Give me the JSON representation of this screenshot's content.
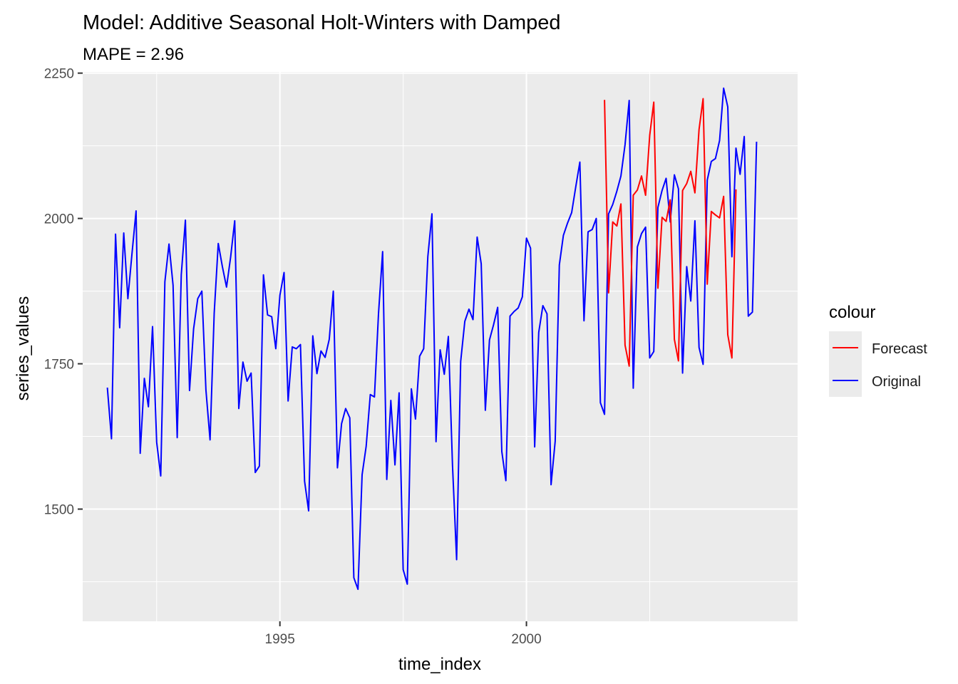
{
  "chart_data": {
    "type": "line",
    "title": "Model:  Additive Seasonal Holt-Winters with Damped",
    "subtitle": "MAPE = 2.96",
    "xlabel": "time_index",
    "ylabel": "series_values",
    "xlim": [
      1991.0,
      2005.5
    ],
    "ylim": [
      1307,
      2252
    ],
    "x_ticks": [
      1995,
      2000
    ],
    "x_ticklabels": [
      "1995",
      "2000"
    ],
    "y_ticks": [
      1500,
      1750,
      2000,
      2250
    ],
    "y_ticklabels": [
      "1500",
      "1750",
      "2000",
      "2250"
    ],
    "grid": true,
    "legend": {
      "title": "colour",
      "position": "right",
      "entries": [
        {
          "label": "Forecast",
          "color": "#ff0000"
        },
        {
          "label": "Original",
          "color": "#0000ff"
        }
      ]
    },
    "x_start": 1991.5,
    "x_step": 0.0833333,
    "series": [
      {
        "name": "Original",
        "color": "#0000ff",
        "values": [
          1709,
          1621,
          1973,
          1812,
          1975,
          1862,
          1940,
          2013,
          1596,
          1725,
          1676,
          1814,
          1615,
          1557,
          1891,
          1956,
          1885,
          1623,
          1903,
          1997,
          1704,
          1810,
          1862,
          1875,
          1705,
          1619,
          1837,
          1957,
          1917,
          1882,
          1933,
          1996,
          1673,
          1753,
          1720,
          1734,
          1563,
          1574,
          1903,
          1834,
          1831,
          1776,
          1868,
          1907,
          1686,
          1779,
          1776,
          1783,
          1548,
          1497,
          1798,
          1733,
          1772,
          1761,
          1792,
          1875,
          1571,
          1647,
          1673,
          1657,
          1382,
          1362,
          1559,
          1608,
          1697,
          1693,
          1836,
          1943,
          1551,
          1687,
          1576,
          1700,
          1396,
          1371,
          1707,
          1655,
          1763,
          1776,
          1934,
          2008,
          1616,
          1774,
          1732,
          1797,
          1576,
          1413,
          1754,
          1823,
          1844,
          1826,
          1968,
          1922,
          1670,
          1791,
          1817,
          1847,
          1599,
          1549,
          1832,
          1840,
          1846,
          1865,
          1966,
          1949,
          1607,
          1804,
          1850,
          1836,
          1542,
          1617,
          1920,
          1971,
          1992,
          2010,
          2054,
          2097,
          1824,
          1977,
          1981,
          2000,
          1683,
          1663,
          2008,
          2024,
          2047,
          2073,
          2127,
          2203,
          1708,
          1951,
          1974,
          1985,
          1760,
          1771,
          2019,
          2048,
          2069,
          1994,
          2075,
          2051,
          1734,
          1917,
          1858,
          1996,
          1778,
          1749,
          2066,
          2098,
          2103,
          2134,
          2224,
          2192,
          1934,
          2121,
          2076,
          2141,
          1832,
          1839,
          2132
        ]
      },
      {
        "name": "Forecast",
        "color": "#ff0000",
        "x_start": 2001.5833,
        "values": [
          2204,
          1872,
          1994,
          1987,
          2025,
          1782,
          1746,
          2040,
          2049,
          2073,
          2040,
          2143,
          2200,
          1880,
          2002,
          1995,
          2032,
          1792,
          1755,
          2048,
          2060,
          2081,
          2044,
          2153,
          2206,
          1887,
          2012,
          2006,
          2001,
          2038,
          1800,
          1760,
          2050
        ]
      }
    ]
  }
}
